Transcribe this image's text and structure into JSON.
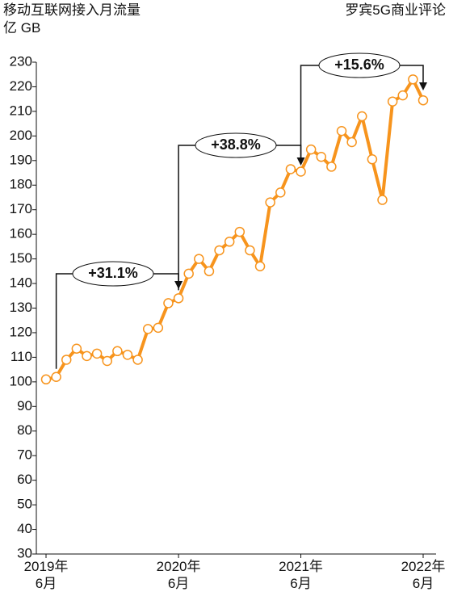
{
  "chart_data": {
    "type": "line",
    "title": "移动互联网接入月流量",
    "subtitle": "亿 GB",
    "source": "罗宾5G商业评论",
    "categories": [
      "2019年\n6月",
      null,
      null,
      null,
      null,
      null,
      null,
      null,
      null,
      null,
      null,
      null,
      null,
      "2020年\n6月",
      null,
      null,
      null,
      null,
      null,
      null,
      null,
      null,
      null,
      null,
      null,
      "2021年\n6月",
      null,
      null,
      null,
      null,
      null,
      null,
      null,
      null,
      null,
      null,
      null,
      "2022年\n6月"
    ],
    "series": [
      {
        "color": "#f7941d",
        "values": [
          101,
          102,
          109,
          113.5,
          110.5,
          111.5,
          108.5,
          112.5,
          111,
          109,
          121.5,
          122,
          132,
          134,
          144,
          150,
          145,
          153.5,
          157,
          161,
          153.5,
          147,
          173,
          177,
          186.5,
          185.5,
          194.5,
          191.5,
          187.5,
          202,
          197.5,
          208,
          190.5,
          174,
          214,
          216.5,
          223,
          214.5
        ]
      }
    ],
    "ylim": [
      30,
      230
    ],
    "yticks": [
      30,
      40,
      50,
      60,
      70,
      80,
      90,
      100,
      110,
      120,
      130,
      140,
      150,
      160,
      170,
      180,
      190,
      200,
      210,
      220,
      230
    ],
    "annotations": [
      {
        "text": "+31.1%"
      },
      {
        "text": "+38.8%"
      },
      {
        "text": "+15.6%"
      }
    ]
  }
}
